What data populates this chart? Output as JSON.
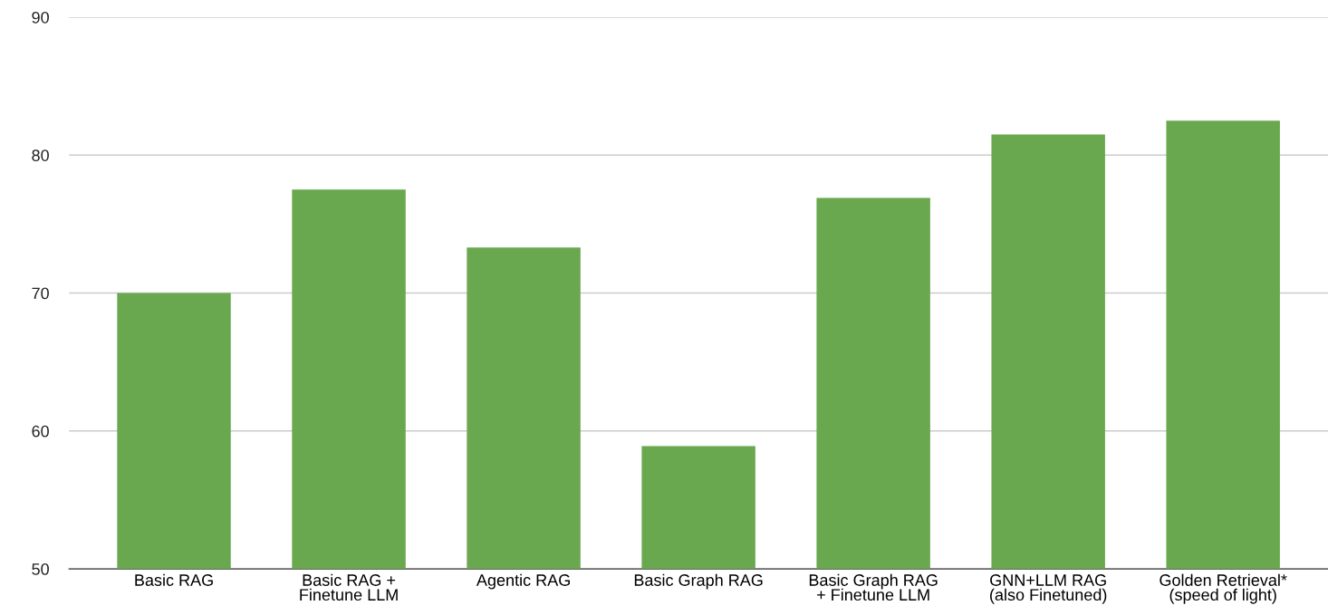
{
  "chart_data": {
    "type": "bar",
    "categories": [
      "Basic RAG",
      "Basic RAG +\nFinetune LLM",
      "Agentic RAG",
      "Basic Graph RAG",
      "Basic Graph RAG\n+ Finetune LLM",
      "GNN+LLM RAG\n(also Finetuned)",
      "Golden Retrieval*\n(speed of light)"
    ],
    "values": [
      70,
      77.5,
      73.3,
      58.9,
      76.9,
      81.5,
      82.5
    ],
    "color": "#6aa84f",
    "ylim": [
      50,
      90
    ],
    "yticks": [
      50,
      60,
      70,
      80,
      90
    ],
    "grid": "y",
    "legend": false
  }
}
